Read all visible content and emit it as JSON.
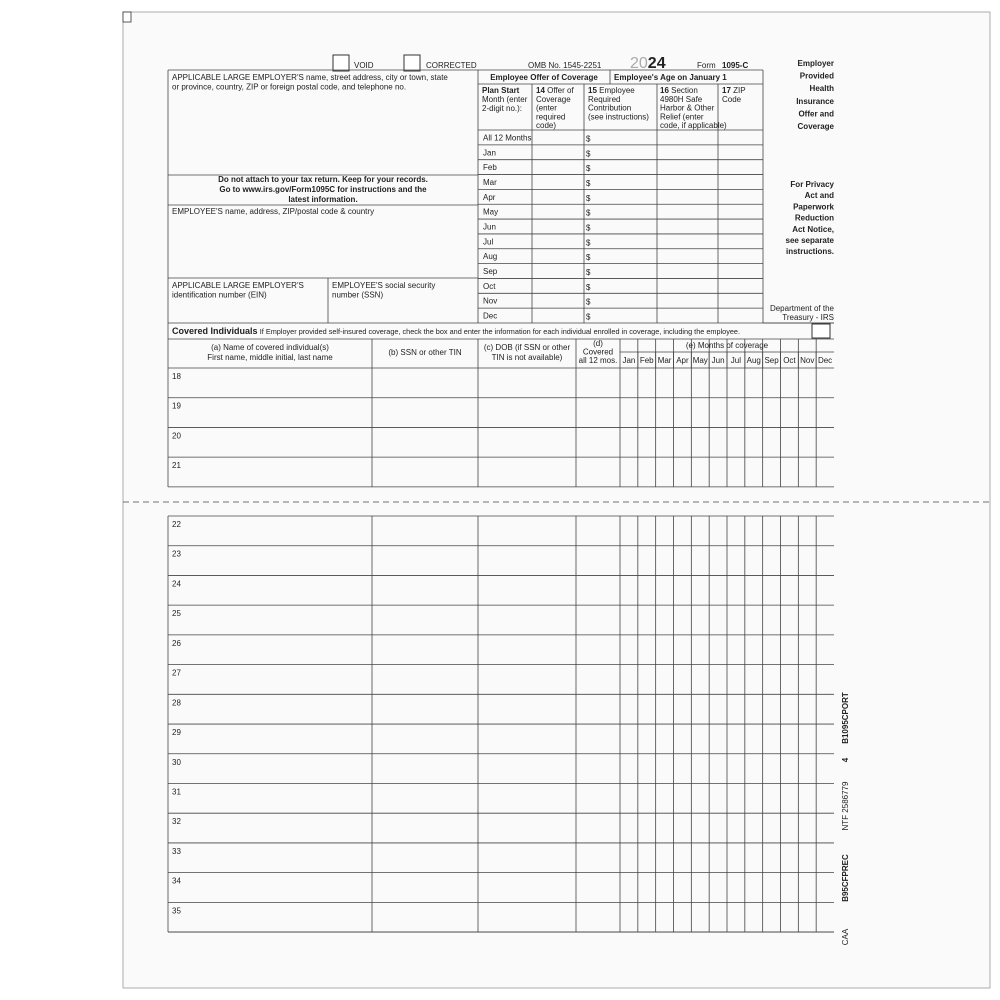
{
  "header": {
    "void": "VOID",
    "corrected": "CORRECTED",
    "omb": "OMB No. 1545-2251",
    "year_light": "20",
    "year_bold": "24",
    "form_label": "Form",
    "form_number": "1095-C",
    "title": [
      "Employer",
      "Provided",
      "Health",
      "Insurance",
      "Offer and",
      "Coverage"
    ]
  },
  "part1": {
    "employer_name": [
      "APPLICABLE LARGE EMPLOYER'S name, street address, city or town, state",
      "or province, country, ZIP or foreign postal code, and telephone no."
    ],
    "notice": [
      "Do not attach to your tax return. Keep for your records.",
      "Go to www.irs.gov/Form1095C for instructions and the",
      "latest information."
    ],
    "employee_name": "EMPLOYEE'S name, address, ZIP/postal code & country",
    "ein": [
      "APPLICABLE LARGE EMPLOYER'S",
      "identification number (EIN)"
    ],
    "ssn": [
      "EMPLOYEE'S social security",
      "number (SSN)"
    ]
  },
  "offer": {
    "group1": "Employee Offer of Coverage",
    "group2": "Employee's Age on January 1",
    "plan_start": [
      "Plan Start",
      "Month (enter",
      "2-digit no.):"
    ],
    "columns": [
      {
        "number": "14",
        "lines": [
          "Offer of",
          "Coverage",
          "(enter",
          "required",
          "code)"
        ]
      },
      {
        "number": "15",
        "lines": [
          "Employee",
          "Required",
          "Contribution",
          "(see instructions)"
        ]
      },
      {
        "number": "16",
        "lines": [
          "Section",
          "4980H Safe",
          "Harbor & Other",
          "Relief (enter",
          "code, if applicable)"
        ]
      },
      {
        "number": "17",
        "lines": [
          "ZIP",
          "Code"
        ]
      }
    ],
    "months": [
      "All 12 Months",
      "Jan",
      "Feb",
      "Mar",
      "Apr",
      "May",
      "Jun",
      "Jul",
      "Aug",
      "Sep",
      "Oct",
      "Nov",
      "Dec"
    ],
    "dollar": "$"
  },
  "side": {
    "privacy": [
      "For Privacy",
      "Act and",
      "Paperwork",
      "Reduction",
      "Act Notice,",
      "see separate",
      "instructions."
    ],
    "department": [
      "Department of the",
      "Treasury - IRS"
    ]
  },
  "part3": {
    "title": "Covered Individuals",
    "instruction": "If Employer provided self-insured coverage, check the box and enter the information for each individual enrolled in coverage, including the employee.",
    "col_a": [
      "(a) Name of covered individual(s)",
      "First name, middle initial, last name"
    ],
    "col_b": "(b) SSN or other TIN",
    "col_c": [
      "(c) DOB (if SSN or other",
      "TIN is not available)"
    ],
    "col_d": [
      "(d)",
      "Covered",
      "all 12 mos."
    ],
    "col_e": "(e) Months of coverage",
    "months": [
      "Jan",
      "Feb",
      "Mar",
      "Apr",
      "May",
      "Jun",
      "Jul",
      "Aug",
      "Sep",
      "Oct",
      "Nov",
      "Dec"
    ],
    "rows": [
      "18",
      "19",
      "20",
      "21",
      "22",
      "23",
      "24",
      "25",
      "26",
      "27",
      "28",
      "29",
      "30",
      "31",
      "32",
      "33",
      "34",
      "35"
    ]
  },
  "margin": {
    "code1": "B1095CPORT",
    "code2": "4",
    "ntf": "NTF 2586779",
    "code3": "B95CFPREC",
    "caa": "CAA"
  }
}
